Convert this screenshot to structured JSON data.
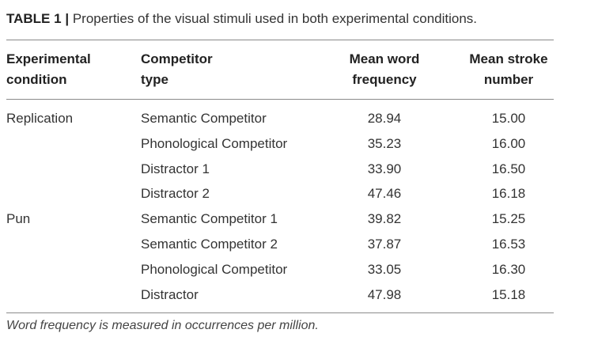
{
  "caption": {
    "label": "TABLE 1",
    "separator": "|",
    "text": "Properties of the visual stimuli used in both experimental conditions."
  },
  "table": {
    "headers": [
      [
        "Experimental",
        "condition"
      ],
      [
        "Competitor",
        "type"
      ],
      [
        "Mean word",
        "frequency"
      ],
      [
        "Mean stroke",
        "number"
      ]
    ],
    "rows": [
      {
        "condition": "Replication",
        "competitor": "Semantic Competitor",
        "frequency": "28.94",
        "stroke": "15.00"
      },
      {
        "condition": "",
        "competitor": "Phonological Competitor",
        "frequency": "35.23",
        "stroke": "16.00"
      },
      {
        "condition": "",
        "competitor": "Distractor 1",
        "frequency": "33.90",
        "stroke": "16.50"
      },
      {
        "condition": "",
        "competitor": "Distractor 2",
        "frequency": "47.46",
        "stroke": "16.18"
      },
      {
        "condition": "Pun",
        "competitor": "Semantic Competitor 1",
        "frequency": "39.82",
        "stroke": "15.25"
      },
      {
        "condition": "",
        "competitor": "Semantic Competitor 2",
        "frequency": "37.87",
        "stroke": "16.53"
      },
      {
        "condition": "",
        "competitor": "Phonological Competitor",
        "frequency": "33.05",
        "stroke": "16.30"
      },
      {
        "condition": "",
        "competitor": "Distractor",
        "frequency": "47.98",
        "stroke": "15.18"
      }
    ]
  },
  "footnote": "Word frequency is measured in occurrences per million."
}
